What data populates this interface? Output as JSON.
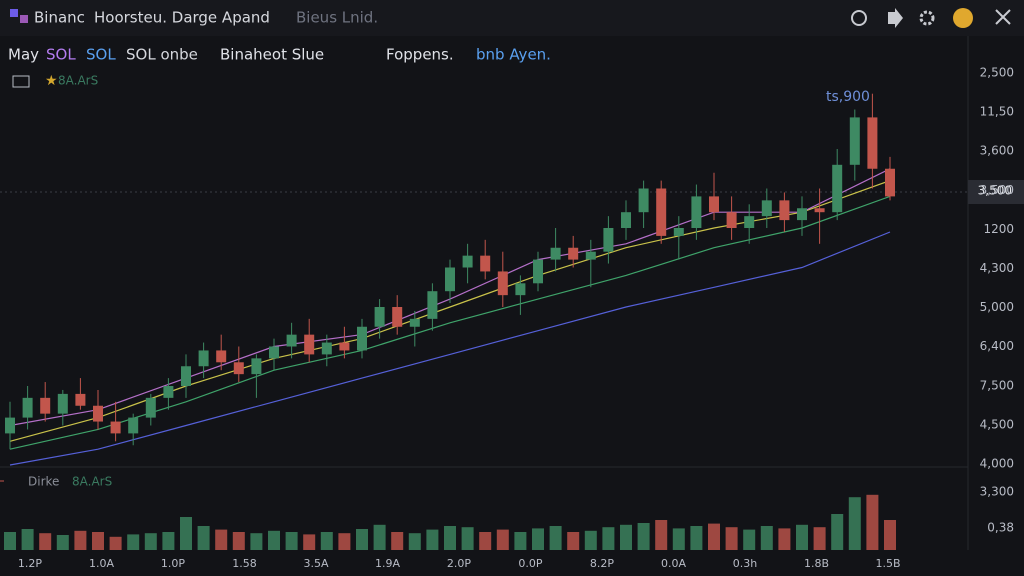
{
  "header": {
    "logo": "Binanc",
    "title": "Hoorsteu. Darge Apand",
    "subtitle": "Bieus Lnid."
  },
  "toolbar": {
    "items": [
      "May",
      "SOL",
      "SOL",
      "SOL onbe",
      "Binaheot Slue",
      "Foppens.",
      "bnb Ayen."
    ],
    "colors": [
      "#e0e2e8",
      "#b47cf0",
      "#5aa0f0",
      "#d6d8de",
      "#e0e2e8",
      "#e0e2e8",
      "#5aa0f0"
    ],
    "indicator": "8A.ArS"
  },
  "chart_data": {
    "type": "candlestick",
    "annotation": "ts,900",
    "current_price_label": "3,500",
    "price_axis_labels": [
      "2,500",
      "11,50",
      "3,600",
      "3,500",
      "1200",
      "4,300",
      "5,000",
      "6,400",
      "7,500",
      "4,500",
      "4,000"
    ],
    "ylim": [
      0,
      100
    ],
    "candles": [
      [
        8,
        16,
        4,
        12
      ],
      [
        12,
        20,
        9,
        17
      ],
      [
        17,
        21,
        11,
        13
      ],
      [
        13,
        19,
        10,
        18
      ],
      [
        18,
        22,
        14,
        15
      ],
      [
        15,
        19,
        9,
        11
      ],
      [
        11,
        16,
        6,
        8
      ],
      [
        8,
        13,
        5,
        12
      ],
      [
        12,
        18,
        10,
        17
      ],
      [
        17,
        22,
        14,
        20
      ],
      [
        20,
        28,
        17,
        25
      ],
      [
        25,
        31,
        22,
        29
      ],
      [
        29,
        33,
        24,
        26
      ],
      [
        26,
        30,
        21,
        23
      ],
      [
        23,
        28,
        17,
        27
      ],
      [
        27,
        32,
        24,
        30
      ],
      [
        30,
        36,
        27,
        33
      ],
      [
        33,
        37,
        26,
        28
      ],
      [
        28,
        33,
        25,
        31
      ],
      [
        31,
        35,
        27,
        29
      ],
      [
        29,
        37,
        27,
        35
      ],
      [
        35,
        42,
        32,
        40
      ],
      [
        40,
        43,
        33,
        35
      ],
      [
        35,
        39,
        30,
        37
      ],
      [
        37,
        46,
        34,
        44
      ],
      [
        44,
        52,
        41,
        50
      ],
      [
        50,
        56,
        46,
        53
      ],
      [
        53,
        57,
        47,
        49
      ],
      [
        49,
        54,
        40,
        43
      ],
      [
        43,
        48,
        38,
        46
      ],
      [
        46,
        54,
        44,
        52
      ],
      [
        52,
        60,
        49,
        55
      ],
      [
        55,
        58,
        50,
        52
      ],
      [
        52,
        57,
        45,
        54
      ],
      [
        54,
        63,
        51,
        60
      ],
      [
        60,
        67,
        57,
        64
      ],
      [
        64,
        72,
        60,
        70
      ],
      [
        70,
        72,
        56,
        58
      ],
      [
        58,
        63,
        52,
        60
      ],
      [
        60,
        71,
        57,
        68
      ],
      [
        68,
        74,
        62,
        64
      ],
      [
        64,
        68,
        57,
        60
      ],
      [
        60,
        66,
        56,
        63
      ],
      [
        63,
        70,
        60,
        67
      ],
      [
        67,
        69,
        59,
        62
      ],
      [
        62,
        68,
        58,
        65
      ],
      [
        65,
        70,
        56,
        64
      ],
      [
        64,
        80,
        62,
        76
      ],
      [
        76,
        90,
        72,
        88
      ],
      [
        88,
        94,
        70,
        75
      ],
      [
        75,
        78,
        67,
        68
      ]
    ],
    "up_color": "#3e8a63",
    "down_color": "#c2564c",
    "moving_averages": [
      {
        "color": "#c9c24a",
        "values": [
          6,
          12,
          20,
          27,
          32,
          40,
          48,
          55,
          60,
          64,
          72
        ]
      },
      {
        "color": "#b46fc8",
        "values": [
          10,
          14,
          22,
          30,
          33,
          42,
          52,
          56,
          64,
          64,
          75
        ]
      },
      {
        "color": "#3fa36a",
        "values": [
          4,
          9,
          16,
          24,
          29,
          36,
          42,
          48,
          55,
          60,
          68
        ]
      },
      {
        "color": "#5560d8",
        "values": [
          0,
          4,
          10,
          16,
          22,
          28,
          34,
          40,
          45,
          50,
          59
        ]
      }
    ],
    "volume_label": "Dirke",
    "volume_indicator": "8A.ArS",
    "volume_axis_labels": [
      "3,300",
      "0,38"
    ],
    "volume_ylim": [
      0,
      100
    ],
    "volume": [
      30,
      35,
      28,
      25,
      32,
      30,
      22,
      26,
      28,
      30,
      55,
      40,
      34,
      30,
      28,
      32,
      30,
      26,
      30,
      28,
      35,
      42,
      30,
      28,
      34,
      40,
      38,
      30,
      34,
      30,
      36,
      40,
      30,
      32,
      38,
      42,
      45,
      50,
      36,
      40,
      44,
      38,
      34,
      40,
      36,
      42,
      38,
      60,
      88,
      92,
      50
    ],
    "x_labels": [
      "1.2P",
      "1.0A",
      "1.0P",
      "1.58",
      "3.5A",
      "1.9A",
      "2.0P",
      "0.0P",
      "8.2P",
      "0.0A",
      "0.3h",
      "1.8B",
      "1.5B"
    ]
  }
}
